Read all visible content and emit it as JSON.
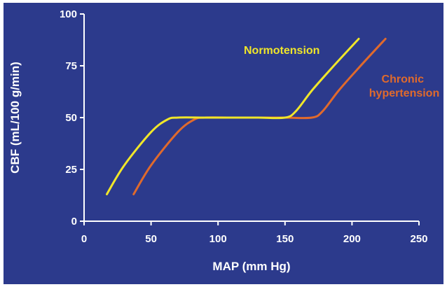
{
  "chart_data": {
    "type": "line",
    "title": "",
    "xlabel": "MAP (mm Hg)",
    "ylabel": "CBF (mL/100 g/min)",
    "xlim": [
      0,
      250
    ],
    "ylim": [
      0,
      100
    ],
    "x_ticks": [
      0,
      50,
      100,
      150,
      200,
      250
    ],
    "y_ticks": [
      0,
      25,
      50,
      75,
      100
    ],
    "grid": false,
    "background_color": "#2c3a8c",
    "axis_color": "#ffffff",
    "series": [
      {
        "name": "Normotension",
        "color": "#f0e62a",
        "x": [
          17,
          30,
          50,
          62,
          70,
          90,
          110,
          130,
          150,
          158,
          170,
          185,
          205
        ],
        "y": [
          13,
          27,
          43,
          49,
          50,
          50,
          50,
          50,
          50,
          53,
          63,
          74,
          88
        ]
      },
      {
        "name": "Chronic\nhypertension",
        "label_lines": [
          "Chronic",
          "hypertension"
        ],
        "color": "#e06a2c",
        "x": [
          37,
          50,
          70,
          82,
          90,
          110,
          130,
          150,
          170,
          178,
          190,
          205,
          225
        ],
        "y": [
          13,
          27,
          43,
          49,
          50,
          50,
          50,
          50,
          50,
          53,
          63,
          74,
          88
        ]
      }
    ]
  }
}
